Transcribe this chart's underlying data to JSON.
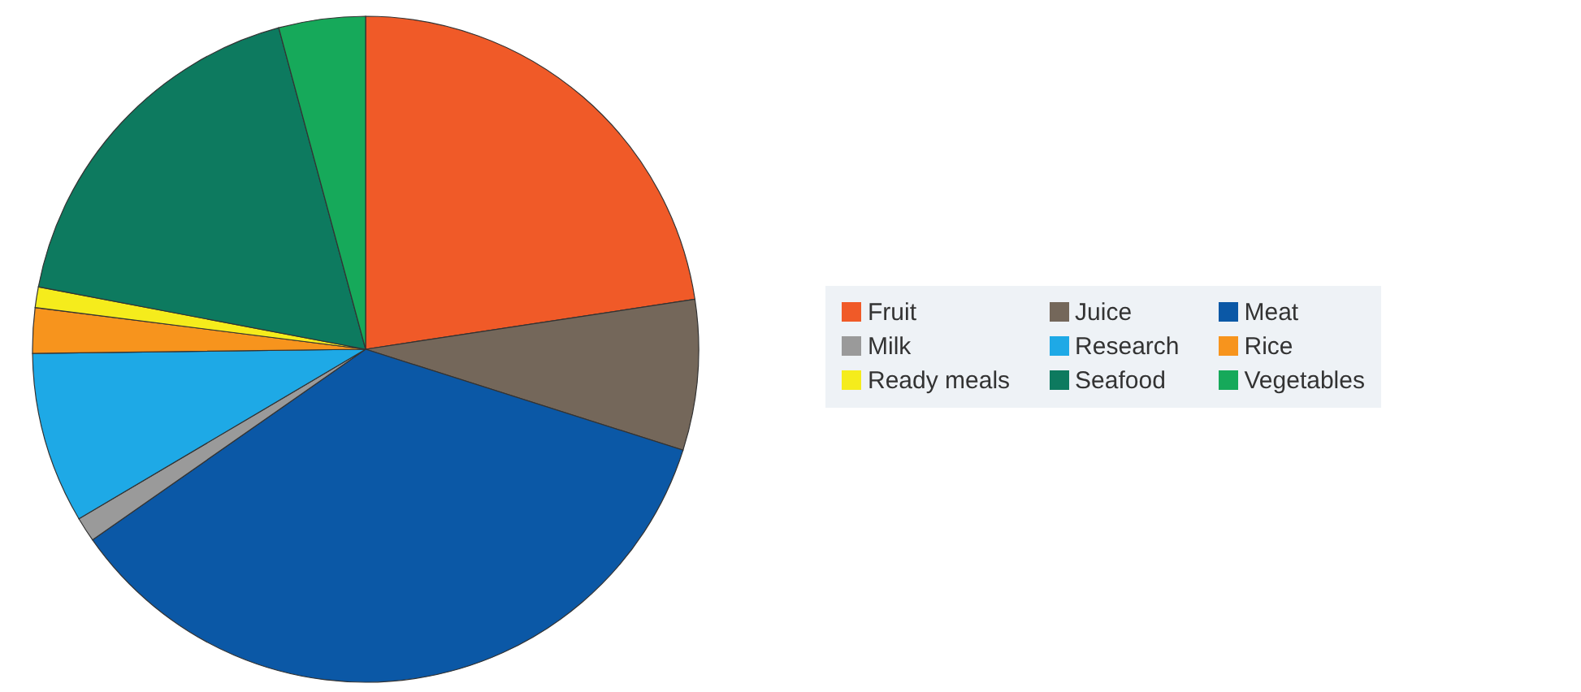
{
  "chart_data": {
    "type": "pie",
    "categories": [
      "Fruit",
      "Juice",
      "Meat",
      "Milk",
      "Research",
      "Rice",
      "Ready meals",
      "Seafood",
      "Vegetables"
    ],
    "values": [
      22.6,
      7.3,
      35.4,
      1.2,
      8.3,
      2.2,
      1.0,
      17.8,
      4.2
    ],
    "colors": [
      "#f05a28",
      "#74675a",
      "#0b58a6",
      "#9a9a9a",
      "#1ea9e6",
      "#f7941d",
      "#f5ec1c",
      "#0d7a5f",
      "#16a95a"
    ],
    "legend": "right"
  }
}
